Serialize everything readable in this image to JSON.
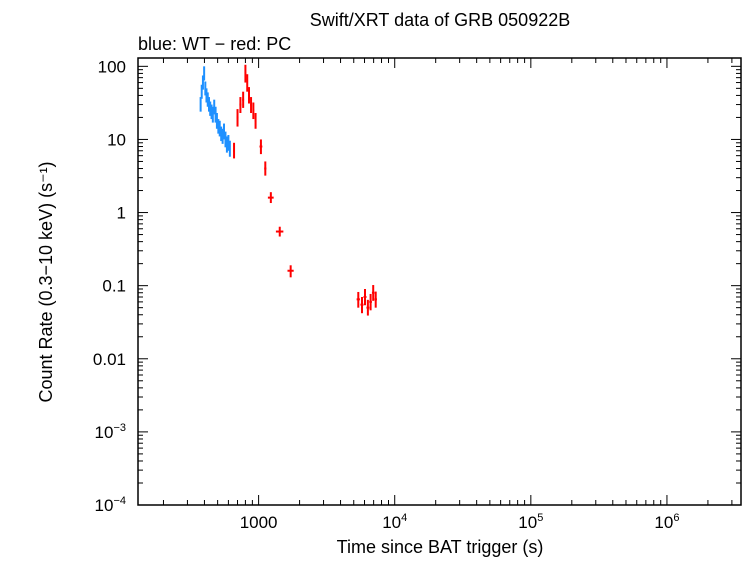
{
  "chart_data": {
    "type": "scatter",
    "title": "Swift/XRT data of GRB 050922B",
    "subtitle": "blue: WT − red: PC",
    "xlabel": "Time since BAT trigger (s)",
    "ylabel": "Count Rate (0.3−10 keV) (s⁻¹)",
    "xscale": "log",
    "yscale": "log",
    "xlim": [
      130,
      3500000
    ],
    "ylim": [
      0.0001,
      130
    ],
    "x_ticks": [
      {
        "value": 1000,
        "label": "1000"
      },
      {
        "value": 10000,
        "base": "10",
        "exp": "4"
      },
      {
        "value": 100000,
        "base": "10",
        "exp": "5"
      },
      {
        "value": 1000000,
        "base": "10",
        "exp": "6"
      }
    ],
    "y_ticks": [
      {
        "value": 100,
        "label": "100"
      },
      {
        "value": 10,
        "label": "10"
      },
      {
        "value": 1,
        "label": "1"
      },
      {
        "value": 0.1,
        "label": "0.1"
      },
      {
        "value": 0.01,
        "label": "0.01"
      },
      {
        "value": 0.001,
        "base": "10",
        "exp": "−3"
      },
      {
        "value": 0.0001,
        "base": "10",
        "exp": "−4"
      }
    ],
    "grid": false,
    "series": [
      {
        "name": "WT",
        "color": "#1e90ff",
        "points": [
          {
            "x": 375,
            "y": 30,
            "xerr": 4,
            "ylo": 24,
            "yhi": 38
          },
          {
            "x": 382,
            "y": 45,
            "xerr": 4,
            "ylo": 36,
            "yhi": 56
          },
          {
            "x": 390,
            "y": 60,
            "xerr": 4,
            "ylo": 48,
            "yhi": 75
          },
          {
            "x": 398,
            "y": 80,
            "xerr": 4,
            "ylo": 64,
            "yhi": 100
          },
          {
            "x": 406,
            "y": 50,
            "xerr": 4,
            "ylo": 40,
            "yhi": 62
          },
          {
            "x": 414,
            "y": 40,
            "xerr": 4,
            "ylo": 32,
            "yhi": 50
          },
          {
            "x": 423,
            "y": 35,
            "xerr": 4,
            "ylo": 28,
            "yhi": 44
          },
          {
            "x": 432,
            "y": 30,
            "xerr": 4,
            "ylo": 24,
            "yhi": 38
          },
          {
            "x": 441,
            "y": 26,
            "xerr": 5,
            "ylo": 21,
            "yhi": 33
          },
          {
            "x": 451,
            "y": 24,
            "xerr": 5,
            "ylo": 19,
            "yhi": 30
          },
          {
            "x": 461,
            "y": 22,
            "xerr": 5,
            "ylo": 17,
            "yhi": 28
          },
          {
            "x": 472,
            "y": 28,
            "xerr": 5,
            "ylo": 22,
            "yhi": 35
          },
          {
            "x": 483,
            "y": 22,
            "xerr": 5,
            "ylo": 17,
            "yhi": 28
          },
          {
            "x": 494,
            "y": 18,
            "xerr": 5,
            "ylo": 14,
            "yhi": 23
          },
          {
            "x": 506,
            "y": 15,
            "xerr": 6,
            "ylo": 12,
            "yhi": 19
          },
          {
            "x": 518,
            "y": 14,
            "xerr": 6,
            "ylo": 11,
            "yhi": 18
          },
          {
            "x": 531,
            "y": 12,
            "xerr": 6,
            "ylo": 9.5,
            "yhi": 15
          },
          {
            "x": 544,
            "y": 11,
            "xerr": 6,
            "ylo": 8.7,
            "yhi": 14
          },
          {
            "x": 557,
            "y": 13,
            "xerr": 6,
            "ylo": 10,
            "yhi": 16.5
          },
          {
            "x": 571,
            "y": 10,
            "xerr": 6,
            "ylo": 7.8,
            "yhi": 12.8
          },
          {
            "x": 585,
            "y": 8.5,
            "xerr": 7,
            "ylo": 6.6,
            "yhi": 11
          },
          {
            "x": 600,
            "y": 9,
            "xerr": 7,
            "ylo": 7,
            "yhi": 11.5
          },
          {
            "x": 615,
            "y": 7.5,
            "xerr": 7,
            "ylo": 5.8,
            "yhi": 9.6
          }
        ]
      },
      {
        "name": "PC",
        "color": "#ff0000",
        "points": [
          {
            "x": 660,
            "y": 7,
            "xerr": 10,
            "ylo": 5.5,
            "yhi": 9
          },
          {
            "x": 700,
            "y": 20,
            "xerr": 12,
            "ylo": 15,
            "yhi": 26
          },
          {
            "x": 735,
            "y": 30,
            "xerr": 12,
            "ylo": 23,
            "yhi": 38
          },
          {
            "x": 770,
            "y": 35,
            "xerr": 12,
            "ylo": 27,
            "yhi": 45
          },
          {
            "x": 800,
            "y": 80,
            "xerr": 10,
            "ylo": 60,
            "yhi": 105
          },
          {
            "x": 825,
            "y": 60,
            "xerr": 10,
            "ylo": 45,
            "yhi": 78
          },
          {
            "x": 850,
            "y": 40,
            "xerr": 10,
            "ylo": 31,
            "yhi": 52
          },
          {
            "x": 880,
            "y": 30,
            "xerr": 12,
            "ylo": 23,
            "yhi": 38
          },
          {
            "x": 915,
            "y": 25,
            "xerr": 12,
            "ylo": 19,
            "yhi": 32
          },
          {
            "x": 950,
            "y": 18,
            "xerr": 12,
            "ylo": 14,
            "yhi": 23
          },
          {
            "x": 1040,
            "y": 8,
            "xerr": 25,
            "ylo": 6.3,
            "yhi": 10
          },
          {
            "x": 1120,
            "y": 4,
            "xerr": 20,
            "ylo": 3.2,
            "yhi": 5
          },
          {
            "x": 1230,
            "y": 1.6,
            "xerr": 60,
            "ylo": 1.35,
            "yhi": 1.9
          },
          {
            "x": 1430,
            "y": 0.55,
            "xerr": 90,
            "ylo": 0.47,
            "yhi": 0.64
          },
          {
            "x": 1720,
            "y": 0.16,
            "xerr": 90,
            "ylo": 0.13,
            "yhi": 0.19
          },
          {
            "x": 5400,
            "y": 0.065,
            "xerr": 150,
            "ylo": 0.05,
            "yhi": 0.082
          },
          {
            "x": 5750,
            "y": 0.055,
            "xerr": 150,
            "ylo": 0.042,
            "yhi": 0.07
          },
          {
            "x": 6050,
            "y": 0.07,
            "xerr": 150,
            "ylo": 0.054,
            "yhi": 0.09
          },
          {
            "x": 6350,
            "y": 0.05,
            "xerr": 150,
            "ylo": 0.039,
            "yhi": 0.064
          },
          {
            "x": 6650,
            "y": 0.06,
            "xerr": 150,
            "ylo": 0.046,
            "yhi": 0.077
          },
          {
            "x": 6950,
            "y": 0.08,
            "xerr": 150,
            "ylo": 0.062,
            "yhi": 0.102
          },
          {
            "x": 7250,
            "y": 0.065,
            "xerr": 150,
            "ylo": 0.05,
            "yhi": 0.083
          }
        ]
      }
    ]
  }
}
